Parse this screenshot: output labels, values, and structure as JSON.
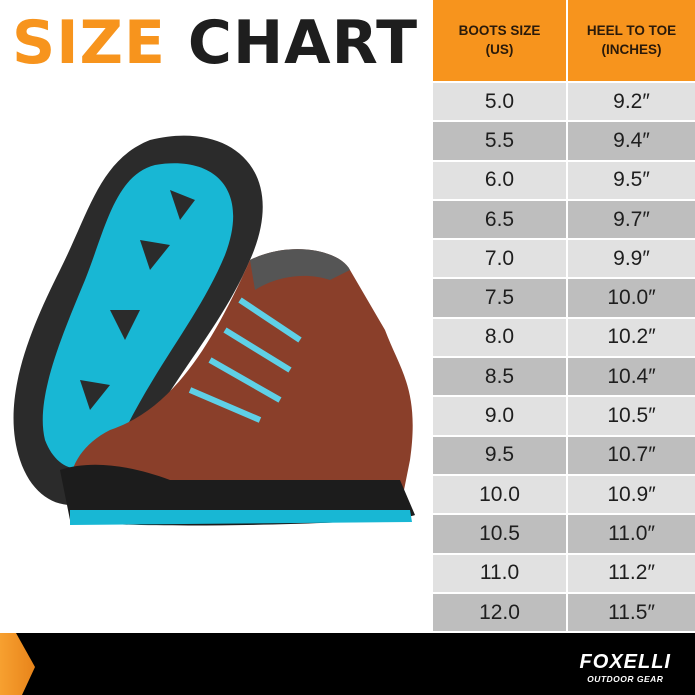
{
  "title": {
    "part1": "SIZE",
    "part2": "CHART",
    "accent": "#f7941d"
  },
  "table": {
    "headers": [
      "BOOTS SIZE\n(US)",
      "HEEL TO TOE\n(INCHES)"
    ],
    "rows": [
      [
        "5.0",
        "9.2″"
      ],
      [
        "5.5",
        "9.4″"
      ],
      [
        "6.0",
        "9.5″"
      ],
      [
        "6.5",
        "9.7″"
      ],
      [
        "7.0",
        "9.9″"
      ],
      [
        "7.5",
        "10.0″"
      ],
      [
        "8.0",
        "10.2″"
      ],
      [
        "8.5",
        "10.4″"
      ],
      [
        "9.0",
        "10.5″"
      ],
      [
        "9.5",
        "10.7″"
      ],
      [
        "10.0",
        "10.9″"
      ],
      [
        "10.5",
        "11.0″"
      ],
      [
        "11.0",
        "11.2″"
      ],
      [
        "12.0",
        "11.5″"
      ]
    ]
  },
  "footer": {
    "brand": "FOXELLI",
    "tagline": "OUTDOOR GEAR"
  },
  "product": {
    "image": "hiking-boots-brown-teal-laces"
  }
}
